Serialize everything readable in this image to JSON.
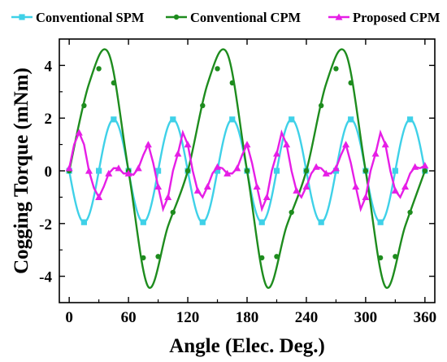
{
  "chart_data": {
    "type": "line",
    "xlabel": "Angle (Elec. Deg.)",
    "ylabel": "Cogging Torque (mNm)",
    "xlim": [
      -10,
      370
    ],
    "ylim": [
      -5,
      5
    ],
    "xticks": [
      "0",
      "60",
      "120",
      "180",
      "240",
      "300",
      "360"
    ],
    "yticks": [
      "-4",
      "-2",
      "0",
      "2",
      "4"
    ],
    "grid": false,
    "legend_position": "top",
    "series": [
      {
        "name": "Conventional SPM",
        "color": "#3fd1e8",
        "marker": "square",
        "x": [
          0,
          7.5,
          15,
          22.5,
          30,
          37.5,
          45,
          52.5,
          60,
          67.5,
          75,
          82.5,
          90,
          97.5,
          105,
          112.5,
          120,
          127.5,
          135,
          142.5,
          150,
          157.5,
          165,
          172.5,
          180,
          187.5,
          195,
          202.5,
          210,
          217.5,
          225,
          232.5,
          240,
          247.5,
          255,
          262.5,
          270,
          277.5,
          285,
          292.5,
          300,
          307.5,
          315,
          322.5,
          330,
          337.5,
          345,
          352.5,
          360
        ],
        "y": [
          0,
          -1.4,
          -1.95,
          -1.4,
          0,
          1.4,
          1.95,
          1.4,
          0,
          -1.4,
          -1.95,
          -1.4,
          0,
          1.4,
          1.95,
          1.4,
          0,
          -1.4,
          -1.95,
          -1.4,
          0,
          1.4,
          1.95,
          1.4,
          0,
          -1.4,
          -1.95,
          -1.4,
          0,
          1.4,
          1.95,
          1.4,
          0,
          -1.4,
          -1.95,
          -1.4,
          0,
          1.4,
          1.95,
          1.4,
          0,
          -1.4,
          -1.95,
          -1.4,
          0,
          1.4,
          1.95,
          1.4,
          0
        ]
      },
      {
        "name": "Conventional CPM",
        "color": "#1e8c1e",
        "marker": "circle",
        "x": [
          0,
          7.5,
          15,
          22.5,
          30,
          37.5,
          45,
          52.5,
          60,
          67.5,
          75,
          82.5,
          90,
          97.5,
          105,
          112.5,
          120,
          127.5,
          135,
          142.5,
          150,
          157.5,
          165,
          172.5,
          180,
          187.5,
          195,
          202.5,
          210,
          217.5,
          225,
          232.5,
          240,
          247.5,
          255,
          262.5,
          270,
          277.5,
          285,
          292.5,
          300,
          307.5,
          315,
          322.5,
          330,
          337.5,
          345,
          352.5,
          360
        ],
        "y": [
          0,
          2.1,
          3.3,
          4.0,
          4.4,
          4.45,
          4.1,
          2.8,
          0,
          -3.0,
          -4.35,
          -4.4,
          -4.0,
          -3.3,
          -2.1,
          0,
          2.1,
          3.3,
          4.0,
          4.4,
          4.45,
          4.1,
          2.8,
          0,
          -3.0,
          -4.35,
          -4.4,
          -4.0,
          -3.3,
          -2.1,
          0,
          2.1,
          3.3,
          4.0,
          4.4,
          4.45,
          4.1,
          2.8,
          0,
          -3.0,
          -4.35,
          -4.4,
          -4.0,
          -3.3,
          -2.1,
          0,
          2.1,
          3.3,
          4.0
        ],
        "note_x_extended": [
          0,
          20,
          40,
          60,
          80,
          100,
          120,
          140,
          160,
          180,
          200,
          220,
          240,
          260,
          280,
          300,
          320,
          340,
          360
        ],
        "note_y_extended": [
          0,
          3.3,
          4.45,
          0,
          -4.4,
          -2.1,
          0,
          3.3,
          4.45,
          0,
          -4.4,
          -2.1,
          0,
          3.3,
          4.45,
          0,
          -4.4,
          -2.1,
          0
        ]
      },
      {
        "name": "Proposed CPM",
        "color": "#e61ee6",
        "marker": "triangle",
        "x": [
          0,
          5,
          10,
          15,
          20,
          25,
          30,
          35,
          40,
          45,
          50,
          55,
          60,
          65,
          70,
          75,
          80,
          85,
          90,
          95,
          100,
          105,
          110,
          115,
          120,
          125,
          130,
          135,
          140,
          145,
          150,
          155,
          160,
          165,
          170,
          175,
          180,
          185,
          190,
          195,
          200,
          205,
          210,
          215,
          220,
          225,
          230,
          235,
          240,
          245,
          250,
          255,
          260,
          265,
          270,
          275,
          280,
          285,
          290,
          295,
          300,
          305,
          310,
          315,
          320,
          325,
          330,
          335,
          340,
          345,
          350,
          355,
          360
        ],
        "y": [
          0.1,
          1.0,
          1.45,
          1.0,
          0,
          -0.65,
          -1.0,
          -0.6,
          -0.1,
          0.1,
          0.1,
          -0.1,
          -0.1,
          -0.15,
          0.1,
          0.6,
          1.0,
          0.3,
          -0.6,
          -1.45,
          -1.0,
          0,
          0.65,
          1.45,
          1.0,
          0,
          -0.75,
          -1.0,
          -0.6,
          -0.1,
          0.15,
          0.1,
          -0.1,
          -0.1,
          0.1,
          0.6,
          1.0,
          0.3,
          -0.6,
          -1.45,
          -1.0,
          0,
          0.65,
          1.45,
          1.0,
          0,
          -0.75,
          -1.0,
          -0.6,
          -0.1,
          0.15,
          0.1,
          -0.1,
          -0.1,
          0.1,
          0.6,
          1.0,
          0.3,
          -0.6,
          -1.45,
          -1.0,
          0,
          0.65,
          1.45,
          1.0,
          0,
          -0.75,
          -1.0,
          -0.6,
          -0.1,
          0.15,
          0.1,
          0.2
        ]
      }
    ]
  }
}
